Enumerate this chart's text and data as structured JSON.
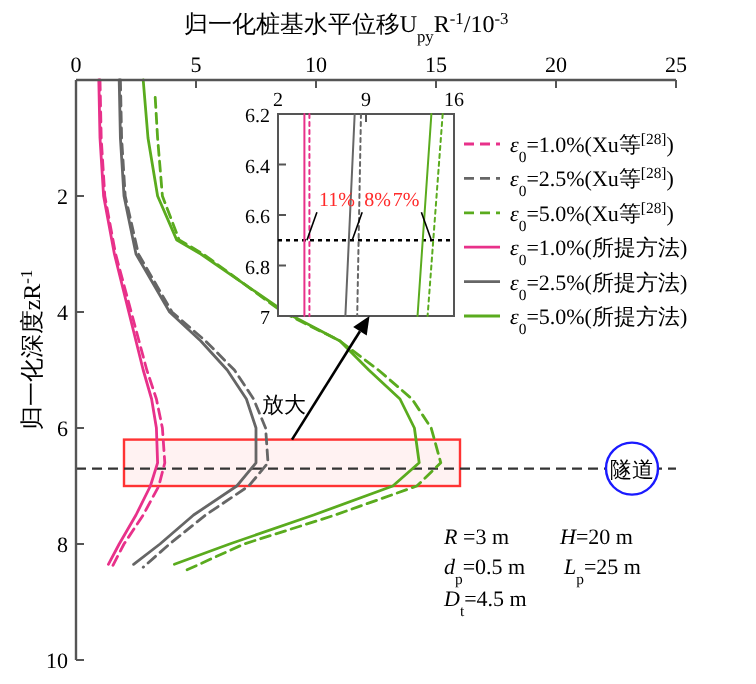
{
  "chart_data": [
    {
      "type": "line",
      "xlabel": "归一化桩基水平位移U$_{py}$R$^{-1}$/10$^{-3}$",
      "ylabel": "归一化深度zR$^{-1}$",
      "xlim": [
        0,
        25
      ],
      "xticks": [
        0,
        5,
        10,
        15,
        20,
        25
      ],
      "ylim": [
        10,
        0
      ],
      "yticks": [
        {
          "value": 0,
          "label": null
        },
        2,
        4,
        6,
        8,
        10
      ],
      "legend": "right",
      "series": [
        {
          "name": "*ε*$_{0}$=1.0%(Xu等$^{[28]}$)",
          "color": "#e8318a",
          "line_style": "dashed",
          "x": [
            1.0,
            1.05,
            1.2,
            1.65,
            2.3,
            2.95,
            3.35,
            3.6,
            3.7,
            3.45,
            2.8,
            2.0,
            1.5
          ],
          "values": [
            0,
            1,
            2,
            3,
            4,
            5,
            5.5,
            6,
            6.6,
            7,
            7.5,
            8,
            8.4
          ]
        },
        {
          "name": "*ε*$_{0}$=2.5%(Xu等$^{[28]}$)",
          "color": "#666666",
          "line_style": "dashed",
          "x": [
            1.85,
            1.9,
            2.05,
            2.6,
            4.0,
            5.4,
            6.6,
            7.4,
            7.9,
            8.0,
            7.2,
            5.4,
            3.9,
            2.8
          ],
          "values": [
            0,
            1,
            2,
            3,
            4,
            4.5,
            5,
            5.5,
            6,
            6.6,
            7,
            7.5,
            8,
            8.4
          ]
        },
        {
          "name": "*ε*$_{0}$=5.0%(Xu等$^{[28]}$)",
          "color": "#5aab1e",
          "line_style": "dashed",
          "x": [
            3.3,
            3.4,
            3.6,
            4.3,
            5.3,
            8.6,
            11.0,
            12.6,
            14.0,
            14.8,
            15.2,
            14.2,
            10.8,
            7.0,
            4.6
          ],
          "values": [
            0.3,
            1,
            2,
            2.76,
            3,
            4,
            4.5,
            5,
            5.5,
            6,
            6.6,
            7,
            7.5,
            8,
            8.45
          ]
        },
        {
          "name": "*ε*$_{0}$=1.0%(所提方法)",
          "color": "#e8318a",
          "line_style": "solid",
          "x": [
            0.95,
            1.0,
            1.15,
            1.6,
            2.2,
            2.8,
            3.15,
            3.35,
            3.4,
            3.1,
            2.5,
            1.8,
            1.35
          ],
          "values": [
            0,
            1,
            2,
            3,
            4,
            5,
            5.5,
            6,
            6.6,
            7,
            7.5,
            8,
            8.35
          ]
        },
        {
          "name": "*ε*$_{0}$=2.5%(所提方法)",
          "color": "#666666",
          "line_style": "solid",
          "x": [
            1.8,
            1.85,
            2.0,
            2.5,
            3.9,
            5.2,
            6.3,
            7.1,
            7.5,
            7.5,
            6.7,
            4.9,
            3.5,
            2.4
          ],
          "values": [
            0,
            1,
            2,
            3,
            4,
            4.5,
            5,
            5.5,
            6,
            6.6,
            7,
            7.5,
            8,
            8.35
          ]
        },
        {
          "name": "*ε*$_{0}$=5.0%(所提方法)",
          "color": "#5aab1e",
          "line_style": "solid",
          "x": [
            2.8,
            3.0,
            3.4,
            4.2,
            5.2,
            8.7,
            11.0,
            12.2,
            13.5,
            14.1,
            14.3,
            13.2,
            9.9,
            6.4,
            4.1
          ],
          "values": [
            0,
            1,
            2,
            2.76,
            3,
            4,
            4.5,
            5,
            5.5,
            6,
            6.6,
            7,
            7.5,
            8,
            8.35
          ]
        }
      ],
      "ref_lines": [
        {
          "axis": "y",
          "value": 6.7,
          "label": "隧道",
          "color": "#333333",
          "line_style": "dashed"
        }
      ],
      "bands": [
        {
          "axis": "y",
          "from": 6.2,
          "to": 7.0,
          "color": "#ff3333"
        }
      ],
      "annotations": [
        "放大",
        "*R* =3 m",
        "*H*=20 m",
        "*d*$_{p}$=0.5 m",
        "*L*$_{p}$=25 m",
        "*D*$_{t}$=4.5 m"
      ]
    },
    {
      "type": "line",
      "xlim": [
        2,
        16
      ],
      "xticks": [
        2,
        9,
        16
      ],
      "ylim": [
        7.0,
        6.2
      ],
      "yticks": [
        6.2,
        6.4,
        6.6,
        6.8,
        7.0
      ],
      "series": [
        {
          "color": "#e8318a",
          "line_style": "dotted",
          "x": [
            4.5,
            4.5
          ],
          "values": [
            6.2,
            7.0
          ]
        },
        {
          "color": "#666666",
          "line_style": "dotted",
          "x": [
            8.6,
            8.3
          ],
          "values": [
            6.2,
            7.0
          ]
        },
        {
          "color": "#5aab1e",
          "line_style": "dotted",
          "x": [
            15.1,
            13.9
          ],
          "values": [
            6.2,
            7.0
          ]
        },
        {
          "color": "#e8318a",
          "line_style": "solid",
          "x": [
            4.1,
            4.1
          ],
          "values": [
            6.2,
            7.0
          ]
        },
        {
          "color": "#666666",
          "line_style": "solid",
          "x": [
            8.1,
            7.36
          ],
          "values": [
            6.2,
            7.0
          ]
        },
        {
          "color": "#5aab1e",
          "line_style": "solid",
          "x": [
            14.2,
            13.1
          ],
          "values": [
            6.2,
            7.0
          ]
        }
      ],
      "ref_lines": [
        {
          "axis": "y",
          "value": 6.7,
          "color": "#000000",
          "line_style": "dotted"
        }
      ],
      "annotations": [
        {
          "text": "11%",
          "x": 4.3,
          "y": 6.7
        },
        {
          "text": "8%",
          "x": 7.9,
          "y": 6.7
        },
        {
          "text": "7%",
          "x": 14.2,
          "y": 6.7
        }
      ]
    }
  ]
}
